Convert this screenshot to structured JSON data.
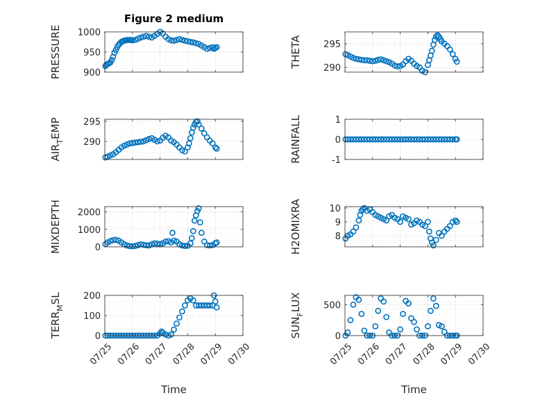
{
  "figure_title": "Figure 2 medium",
  "colors": {
    "marker": "#0072BD",
    "axis": "#262626",
    "grid": "#c8c8c8"
  },
  "chart_data": [
    {
      "type": "scatter",
      "title": "Figure 2 medium",
      "ylabel": "PRESSURE",
      "ylabel_sub": "",
      "ylabel_post": "",
      "xlabel": "",
      "ylim": [
        900,
        1000
      ],
      "yticks": [
        900,
        950,
        1000
      ],
      "xlim": [
        0,
        5
      ],
      "xticks": [],
      "grid": true,
      "x": [
        0.02,
        0.05,
        0.1,
        0.15,
        0.2,
        0.25,
        0.3,
        0.35,
        0.4,
        0.45,
        0.5,
        0.55,
        0.6,
        0.65,
        0.7,
        0.75,
        0.8,
        0.85,
        0.9,
        0.95,
        1.0,
        1.1,
        1.2,
        1.3,
        1.4,
        1.5,
        1.6,
        1.7,
        1.8,
        1.9,
        2.0,
        2.1,
        2.2,
        2.3,
        2.4,
        2.5,
        2.6,
        2.7,
        2.8,
        2.9,
        3.0,
        3.1,
        3.2,
        3.3,
        3.4,
        3.5,
        3.6,
        3.7,
        3.8,
        3.9,
        3.95,
        4.0,
        4.05
      ],
      "y": [
        915,
        918,
        920,
        922,
        924,
        930,
        938,
        948,
        955,
        962,
        968,
        972,
        975,
        977,
        978,
        979,
        980,
        980,
        980,
        980,
        979,
        980,
        983,
        986,
        988,
        990,
        988,
        986,
        990,
        995,
        1000,
        996,
        988,
        982,
        979,
        978,
        980,
        982,
        980,
        978,
        977,
        975,
        974,
        972,
        970,
        966,
        962,
        958,
        960,
        962,
        958,
        960,
        962
      ]
    },
    {
      "type": "scatter",
      "title": "",
      "ylabel": "THETA",
      "ylabel_sub": "",
      "ylabel_post": "",
      "xlabel": "",
      "ylim": [
        289,
        297.5
      ],
      "yticks": [
        290,
        295
      ],
      "xlim": [
        0,
        5
      ],
      "xticks": [],
      "grid": true,
      "x": [
        0.02,
        0.1,
        0.2,
        0.3,
        0.4,
        0.5,
        0.6,
        0.7,
        0.8,
        0.9,
        1.0,
        1.1,
        1.2,
        1.3,
        1.4,
        1.5,
        1.6,
        1.7,
        1.8,
        1.9,
        2.0,
        2.1,
        2.2,
        2.3,
        2.4,
        2.5,
        2.6,
        2.7,
        2.8,
        2.9,
        3.0,
        3.05,
        3.1,
        3.15,
        3.2,
        3.25,
        3.3,
        3.35,
        3.4,
        3.45,
        3.5,
        3.6,
        3.7,
        3.8,
        3.9,
        4.0,
        4.05
      ],
      "y": [
        292.8,
        292.6,
        292.3,
        292.0,
        291.8,
        291.7,
        291.6,
        291.5,
        291.5,
        291.4,
        291.3,
        291.4,
        291.6,
        291.7,
        291.5,
        291.3,
        291.1,
        290.8,
        290.4,
        290.2,
        290.3,
        290.6,
        291.3,
        291.8,
        291.4,
        290.8,
        290.3,
        290.0,
        289.3,
        289.0,
        290.5,
        291.5,
        292.5,
        293.5,
        294.8,
        295.8,
        296.5,
        296.8,
        296.5,
        296.0,
        295.5,
        295.0,
        294.5,
        293.8,
        292.8,
        291.8,
        291.2
      ]
    },
    {
      "type": "scatter",
      "title": "",
      "ylabel": "AIR",
      "ylabel_sub": "T",
      "ylabel_post": "EMP",
      "xlabel": "",
      "ylim": [
        285.5,
        295.5
      ],
      "yticks": [
        290,
        295
      ],
      "xlim": [
        0,
        5
      ],
      "xticks": [],
      "grid": true,
      "x": [
        0.02,
        0.1,
        0.2,
        0.3,
        0.4,
        0.5,
        0.6,
        0.7,
        0.8,
        0.9,
        1.0,
        1.1,
        1.2,
        1.3,
        1.4,
        1.5,
        1.6,
        1.7,
        1.8,
        1.9,
        2.0,
        2.1,
        2.2,
        2.3,
        2.4,
        2.5,
        2.6,
        2.7,
        2.8,
        2.9,
        3.0,
        3.05,
        3.1,
        3.15,
        3.2,
        3.25,
        3.3,
        3.35,
        3.4,
        3.5,
        3.6,
        3.7,
        3.8,
        3.9,
        4.0,
        4.05
      ],
      "y": [
        286.0,
        286.2,
        286.5,
        286.8,
        287.3,
        287.9,
        288.5,
        288.9,
        289.2,
        289.5,
        289.6,
        289.7,
        289.8,
        289.9,
        290.0,
        290.3,
        290.6,
        290.8,
        290.4,
        290.0,
        290.2,
        290.9,
        291.4,
        291.0,
        290.2,
        289.8,
        289.2,
        288.5,
        287.8,
        287.5,
        288.5,
        289.5,
        290.8,
        292.2,
        293.4,
        294.2,
        294.8,
        295.0,
        294.2,
        293.2,
        292.0,
        291.0,
        290.2,
        289.5,
        288.5,
        288.2
      ]
    },
    {
      "type": "scatter",
      "title": "",
      "ylabel": "RAINFALL",
      "ylabel_sub": "",
      "ylabel_post": "",
      "xlabel": "",
      "ylim": [
        -1,
        1
      ],
      "yticks": [
        -1,
        0,
        1
      ],
      "xlim": [
        0,
        5
      ],
      "xticks": [],
      "grid": true,
      "x": [
        0.02,
        0.1,
        0.2,
        0.3,
        0.4,
        0.5,
        0.6,
        0.7,
        0.8,
        0.9,
        1.0,
        1.1,
        1.2,
        1.3,
        1.4,
        1.5,
        1.6,
        1.7,
        1.8,
        1.9,
        2.0,
        2.1,
        2.2,
        2.3,
        2.4,
        2.5,
        2.6,
        2.7,
        2.8,
        2.9,
        3.0,
        3.1,
        3.2,
        3.3,
        3.4,
        3.5,
        3.6,
        3.7,
        3.8,
        3.9,
        4.0,
        4.05
      ],
      "y": [
        0,
        0,
        0,
        0,
        0,
        0,
        0,
        0,
        0,
        0,
        0,
        0,
        0,
        0,
        0,
        0,
        0,
        0,
        0,
        0,
        0,
        0,
        0,
        0,
        0,
        0,
        0,
        0,
        0,
        0,
        0,
        0,
        0,
        0,
        0,
        0,
        0,
        0,
        0,
        0,
        0,
        0
      ]
    },
    {
      "type": "scatter",
      "title": "",
      "ylabel": "MIXDEPTH",
      "ylabel_sub": "",
      "ylabel_post": "",
      "xlabel": "",
      "ylim": [
        0,
        2300
      ],
      "yticks": [
        0,
        1000,
        2000
      ],
      "xlim": [
        0,
        5
      ],
      "xticks": [],
      "grid": true,
      "x": [
        0.02,
        0.1,
        0.2,
        0.3,
        0.4,
        0.5,
        0.6,
        0.7,
        0.8,
        0.9,
        1.0,
        1.1,
        1.2,
        1.3,
        1.4,
        1.5,
        1.6,
        1.7,
        1.8,
        1.9,
        2.0,
        2.1,
        2.2,
        2.3,
        2.4,
        2.45,
        2.5,
        2.6,
        2.7,
        2.8,
        2.9,
        3.0,
        3.1,
        3.15,
        3.2,
        3.25,
        3.3,
        3.35,
        3.4,
        3.45,
        3.5,
        3.6,
        3.7,
        3.8,
        3.9,
        4.0,
        4.05
      ],
      "y": [
        150,
        250,
        330,
        380,
        400,
        350,
        250,
        150,
        80,
        40,
        30,
        50,
        100,
        150,
        120,
        90,
        80,
        150,
        200,
        180,
        150,
        200,
        300,
        320,
        250,
        800,
        350,
        300,
        150,
        80,
        50,
        60,
        200,
        500,
        900,
        1500,
        1800,
        2050,
        2200,
        1400,
        800,
        300,
        100,
        80,
        100,
        200,
        250
      ]
    },
    {
      "type": "scatter",
      "title": "",
      "ylabel": "H2OMIXRA",
      "ylabel_sub": "",
      "ylabel_post": "",
      "xlabel": "",
      "ylim": [
        7.2,
        10.1
      ],
      "yticks": [
        8,
        9,
        10
      ],
      "xlim": [
        0,
        5
      ],
      "xticks": [],
      "grid": true,
      "x": [
        0.02,
        0.1,
        0.2,
        0.3,
        0.4,
        0.5,
        0.55,
        0.6,
        0.65,
        0.7,
        0.8,
        0.9,
        1.0,
        1.1,
        1.2,
        1.3,
        1.4,
        1.5,
        1.6,
        1.7,
        1.8,
        1.9,
        2.0,
        2.1,
        2.2,
        2.3,
        2.4,
        2.5,
        2.6,
        2.7,
        2.8,
        2.9,
        3.0,
        3.05,
        3.1,
        3.15,
        3.2,
        3.3,
        3.4,
        3.5,
        3.6,
        3.7,
        3.8,
        3.9,
        4.0,
        4.05
      ],
      "y": [
        7.8,
        8.0,
        8.1,
        8.3,
        8.6,
        9.1,
        9.5,
        9.8,
        9.9,
        10.0,
        9.8,
        9.9,
        9.7,
        9.5,
        9.4,
        9.3,
        9.2,
        9.1,
        9.4,
        9.5,
        9.3,
        9.2,
        9.0,
        9.4,
        9.3,
        9.2,
        8.8,
        8.9,
        9.1,
        9.0,
        8.8,
        8.7,
        9.0,
        8.3,
        7.8,
        7.5,
        7.3,
        7.7,
        8.2,
        8.0,
        8.3,
        8.5,
        8.7,
        9.0,
        9.1,
        9.0
      ]
    },
    {
      "type": "scatter",
      "title": "",
      "ylabel": "TERR",
      "ylabel_sub": "M",
      "ylabel_post": "SL",
      "xlabel": "Time",
      "ylim": [
        0,
        200
      ],
      "yticks": [
        0,
        100,
        200
      ],
      "xlim": [
        0,
        5
      ],
      "xticks": [
        "07/25",
        "07/26",
        "07/27",
        "07/28",
        "07/29",
        "07/30"
      ],
      "grid": true,
      "x": [
        0.02,
        0.1,
        0.2,
        0.3,
        0.4,
        0.5,
        0.6,
        0.7,
        0.8,
        0.9,
        1.0,
        1.1,
        1.2,
        1.3,
        1.4,
        1.5,
        1.6,
        1.7,
        1.8,
        1.9,
        2.0,
        2.05,
        2.1,
        2.2,
        2.3,
        2.4,
        2.5,
        2.6,
        2.7,
        2.8,
        2.9,
        3.0,
        3.1,
        3.2,
        3.3,
        3.4,
        3.5,
        3.6,
        3.7,
        3.8,
        3.9,
        3.95,
        4.0,
        4.05
      ],
      "y": [
        0,
        0,
        0,
        0,
        0,
        0,
        0,
        0,
        0,
        0,
        0,
        0,
        0,
        0,
        0,
        0,
        0,
        0,
        0,
        0,
        10,
        20,
        15,
        5,
        0,
        5,
        30,
        60,
        90,
        120,
        150,
        175,
        185,
        175,
        150,
        150,
        150,
        150,
        150,
        150,
        150,
        200,
        170,
        140
      ]
    },
    {
      "type": "scatter",
      "title": "",
      "ylabel": "SUN",
      "ylabel_sub": "F",
      "ylabel_post": "LUX",
      "xlabel": "Time",
      "ylim": [
        0,
        650
      ],
      "yticks": [
        0,
        500
      ],
      "xlim": [
        0,
        5
      ],
      "xticks": [
        "07/25",
        "07/26",
        "07/27",
        "07/28",
        "07/29",
        "07/30"
      ],
      "grid": true,
      "x": [
        0.02,
        0.1,
        0.2,
        0.3,
        0.4,
        0.5,
        0.6,
        0.7,
        0.8,
        0.9,
        1.0,
        1.1,
        1.2,
        1.3,
        1.4,
        1.5,
        1.6,
        1.7,
        1.8,
        1.9,
        2.0,
        2.1,
        2.2,
        2.3,
        2.4,
        2.5,
        2.6,
        2.7,
        2.8,
        2.9,
        3.0,
        3.1,
        3.2,
        3.3,
        3.4,
        3.5,
        3.6,
        3.7,
        3.8,
        3.9,
        4.0,
        4.05
      ],
      "y": [
        0,
        50,
        250,
        500,
        620,
        580,
        350,
        80,
        0,
        0,
        0,
        150,
        400,
        600,
        550,
        300,
        50,
        0,
        0,
        0,
        100,
        350,
        560,
        520,
        280,
        220,
        100,
        0,
        0,
        0,
        150,
        400,
        600,
        480,
        170,
        150,
        60,
        0,
        0,
        0,
        0,
        0
      ]
    }
  ]
}
